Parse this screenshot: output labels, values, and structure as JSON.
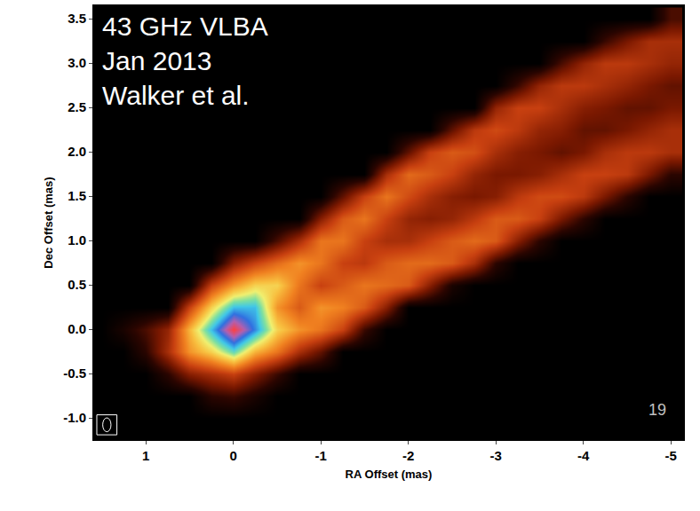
{
  "chart_data": {
    "type": "heatmap",
    "label": [
      "43 GHz VLBA",
      "Jan 2013",
      "Walker et al."
    ],
    "page_number": "19",
    "x_label": "RA Offset (mas)",
    "y_label": "Dec Offset (mas)",
    "xlim": [
      1.6,
      -5.15
    ],
    "ylim": [
      -1.25,
      3.65
    ],
    "xticks": [
      1,
      0,
      -1,
      -2,
      -3,
      -4,
      -5
    ],
    "yticks": [
      {
        "value": -1,
        "label": "-1.0"
      },
      -0.5,
      {
        "value": 0,
        "label": "0.0"
      },
      0.5,
      {
        "value": 1,
        "label": "1.0"
      },
      1.5,
      {
        "value": 2,
        "label": "2.0"
      },
      2.5,
      {
        "value": 3,
        "label": "3.0"
      },
      3.5
    ],
    "grid": false,
    "zlim": [
      0,
      100
    ],
    "x": [
      1.5,
      1.25,
      1.0,
      0.75,
      0.5,
      0.25,
      0,
      -0.25,
      -0.5,
      -0.75,
      -1.0,
      -1.25,
      -1.5,
      -1.75,
      -2.0,
      -2.25,
      -2.5,
      -2.75,
      -3.0,
      -3.25,
      -3.5,
      -3.75,
      -4.0,
      -4.25,
      -4.5,
      -4.75,
      -5.0
    ],
    "y": [
      -1.25,
      -1.0,
      -0.75,
      -0.5,
      -0.25,
      0,
      0.25,
      0.5,
      0.75,
      1.0,
      1.25,
      1.5,
      1.75,
      2.0,
      2.25,
      2.5,
      2.75,
      3.0,
      3.25,
      3.5
    ],
    "z": [
      [
        0,
        0,
        0,
        0,
        0,
        0,
        0,
        0,
        0,
        0,
        0,
        0,
        0,
        0,
        0,
        0,
        0,
        0,
        0,
        0,
        0,
        0,
        0,
        0,
        0,
        0,
        0
      ],
      [
        0,
        0,
        0,
        0,
        0,
        0,
        0,
        0,
        0,
        0,
        0,
        0,
        0,
        0,
        0,
        0,
        0,
        0,
        0,
        0,
        0,
        0,
        0,
        0,
        0,
        0,
        0
      ],
      [
        0,
        0,
        0,
        0,
        0,
        8,
        10,
        5,
        0,
        0,
        0,
        0,
        0,
        0,
        0,
        0,
        0,
        0,
        0,
        0,
        0,
        0,
        0,
        0,
        0,
        0,
        0
      ],
      [
        0,
        0,
        0,
        8,
        20,
        25,
        30,
        20,
        10,
        0,
        0,
        0,
        0,
        0,
        0,
        0,
        0,
        0,
        0,
        0,
        0,
        0,
        0,
        0,
        0,
        0,
        0
      ],
      [
        0,
        0,
        8,
        25,
        45,
        55,
        70,
        50,
        40,
        25,
        15,
        0,
        0,
        0,
        0,
        0,
        0,
        0,
        0,
        0,
        0,
        0,
        0,
        0,
        0,
        0,
        0
      ],
      [
        0,
        5,
        12,
        22,
        50,
        75,
        100,
        80,
        55,
        45,
        40,
        30,
        10,
        0,
        0,
        0,
        0,
        0,
        0,
        0,
        0,
        0,
        0,
        0,
        0,
        0,
        0
      ],
      [
        0,
        0,
        0,
        0,
        30,
        55,
        75,
        75,
        45,
        35,
        45,
        42,
        35,
        20,
        0,
        0,
        0,
        0,
        0,
        0,
        0,
        0,
        0,
        0,
        0,
        0,
        0
      ],
      [
        0,
        0,
        0,
        0,
        0,
        30,
        45,
        55,
        55,
        40,
        30,
        35,
        40,
        38,
        35,
        20,
        5,
        0,
        0,
        0,
        0,
        0,
        0,
        0,
        0,
        0,
        0
      ],
      [
        0,
        0,
        0,
        0,
        0,
        0,
        20,
        30,
        38,
        45,
        40,
        30,
        28,
        35,
        38,
        38,
        35,
        25,
        8,
        0,
        0,
        0,
        0,
        0,
        0,
        0,
        0
      ],
      [
        0,
        0,
        0,
        0,
        0,
        0,
        0,
        0,
        12,
        25,
        40,
        40,
        30,
        25,
        25,
        30,
        35,
        38,
        35,
        20,
        8,
        0,
        0,
        0,
        0,
        0,
        0
      ],
      [
        0,
        0,
        0,
        0,
        0,
        0,
        0,
        0,
        0,
        0,
        20,
        35,
        40,
        30,
        22,
        20,
        22,
        28,
        35,
        35,
        30,
        18,
        8,
        0,
        0,
        0,
        0
      ],
      [
        0,
        0,
        0,
        0,
        0,
        0,
        0,
        0,
        0,
        0,
        0,
        15,
        30,
        40,
        32,
        25,
        20,
        18,
        20,
        28,
        32,
        32,
        28,
        18,
        8,
        0,
        0
      ],
      [
        0,
        0,
        0,
        0,
        0,
        0,
        0,
        0,
        0,
        0,
        0,
        0,
        0,
        25,
        38,
        35,
        30,
        22,
        18,
        18,
        20,
        25,
        30,
        30,
        28,
        18,
        8
      ],
      [
        0,
        0,
        0,
        0,
        0,
        0,
        0,
        0,
        0,
        0,
        0,
        0,
        0,
        0,
        15,
        30,
        35,
        33,
        25,
        20,
        18,
        15,
        18,
        25,
        28,
        28,
        25
      ],
      [
        0,
        0,
        0,
        0,
        0,
        0,
        0,
        0,
        0,
        0,
        0,
        0,
        0,
        0,
        0,
        0,
        15,
        28,
        32,
        28,
        22,
        20,
        15,
        15,
        18,
        22,
        25
      ],
      [
        0,
        0,
        0,
        0,
        0,
        0,
        0,
        0,
        0,
        0,
        0,
        0,
        0,
        0,
        0,
        0,
        0,
        0,
        22,
        30,
        30,
        25,
        20,
        18,
        15,
        15,
        18
      ],
      [
        0,
        0,
        0,
        0,
        0,
        0,
        0,
        0,
        0,
        0,
        0,
        0,
        0,
        0,
        0,
        0,
        0,
        0,
        0,
        10,
        22,
        28,
        28,
        25,
        22,
        18,
        15
      ],
      [
        0,
        0,
        0,
        0,
        0,
        0,
        0,
        0,
        0,
        0,
        0,
        0,
        0,
        0,
        0,
        0,
        0,
        0,
        0,
        0,
        0,
        12,
        22,
        28,
        28,
        25,
        22
      ],
      [
        0,
        0,
        0,
        0,
        0,
        0,
        0,
        0,
        0,
        0,
        0,
        0,
        0,
        0,
        0,
        0,
        0,
        0,
        0,
        0,
        0,
        0,
        0,
        10,
        18,
        25,
        25
      ],
      [
        0,
        0,
        0,
        0,
        0,
        0,
        0,
        0,
        0,
        0,
        0,
        0,
        0,
        0,
        0,
        0,
        0,
        0,
        0,
        0,
        0,
        0,
        0,
        0,
        0,
        0,
        12
      ]
    ]
  }
}
